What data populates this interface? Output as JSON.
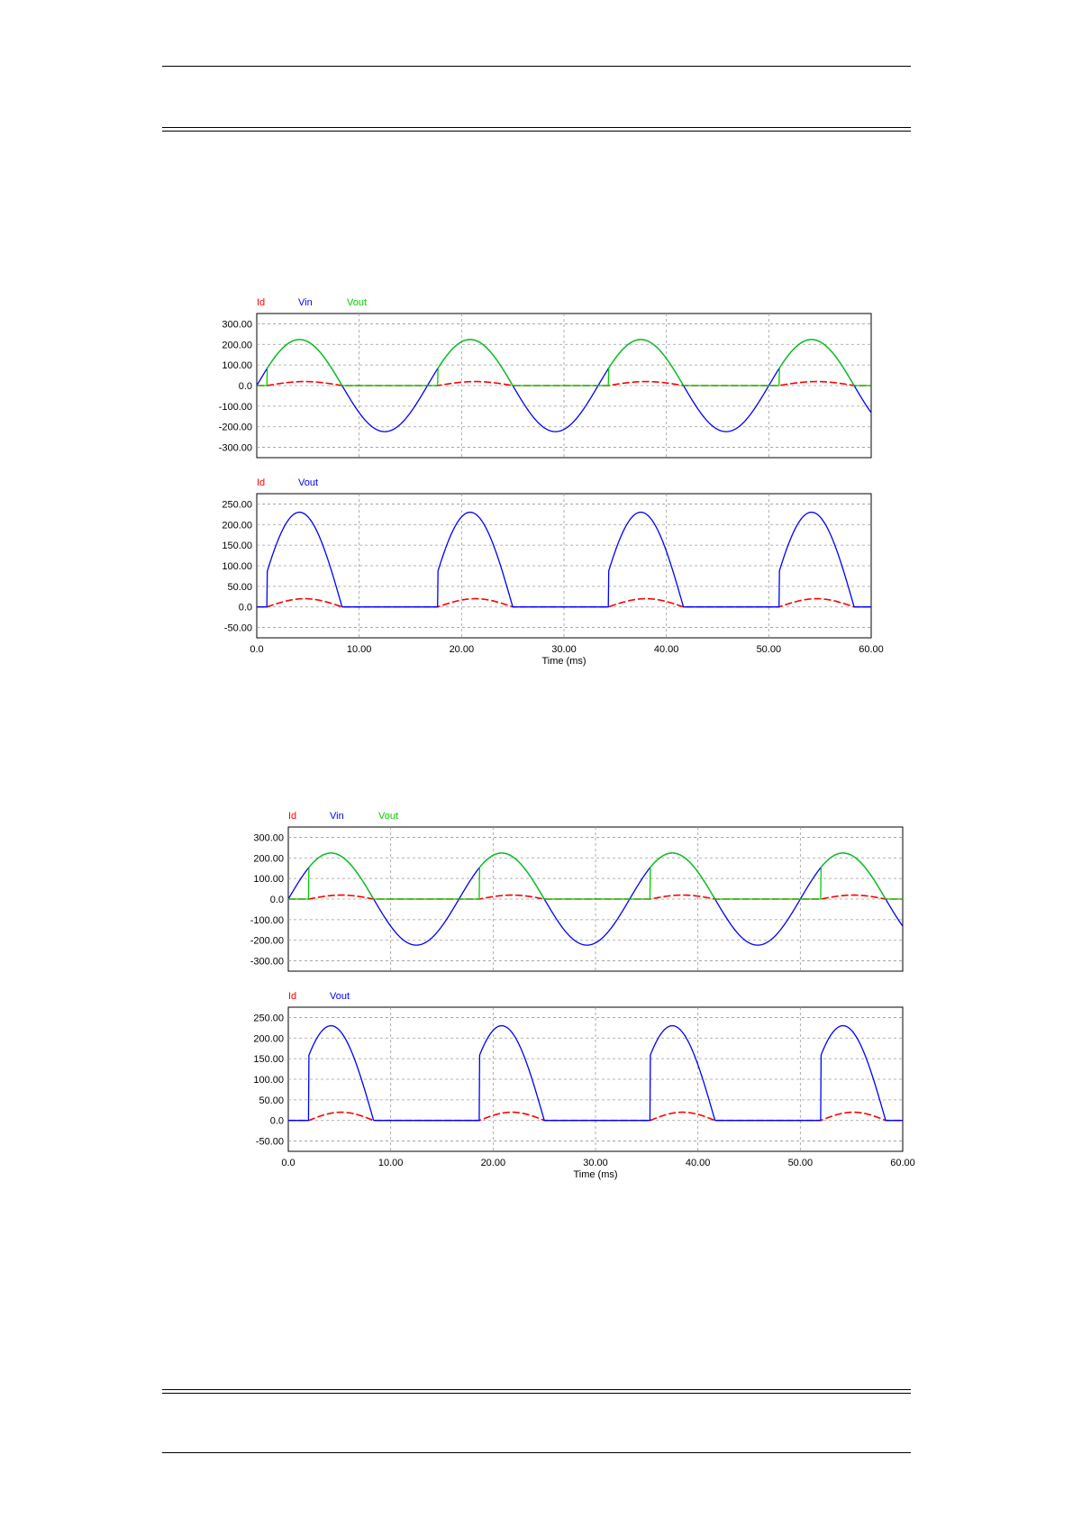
{
  "colors": {
    "id": "#ff0000",
    "vin": "#0000ff",
    "vout_green": "#00d000",
    "vout_blue": "#0000ff",
    "grid": "#9a9a9a"
  },
  "chart_data": [
    {
      "type": "line",
      "figure": 1,
      "alpha_ms": 1.0,
      "panels": [
        {
          "legend": [
            "Id",
            "Vin",
            "Vout"
          ],
          "legend_colors": [
            "#ff0000",
            "#0000ff",
            "#00d000"
          ],
          "yticks": [
            "300.00",
            "200.00",
            "100.00",
            "0.0",
            "-100.00",
            "-200.00",
            "-300.00"
          ],
          "ylim": [
            -360,
            360
          ],
          "series": [
            {
              "name": "Id",
              "amplitude": 20,
              "kind": "id"
            },
            {
              "name": "Vin",
              "amplitude": 230,
              "kind": "sine"
            },
            {
              "name": "Vout",
              "amplitude": 230,
              "kind": "vout"
            }
          ]
        },
        {
          "legend": [
            "Id",
            "Vout"
          ],
          "legend_colors": [
            "#ff0000",
            "#0000ff"
          ],
          "yticks": [
            "250.00",
            "200.00",
            "150.00",
            "100.00",
            "50.00",
            "0.0",
            "-50.00"
          ],
          "ylim": [
            -75,
            275
          ],
          "series": [
            {
              "name": "Id",
              "amplitude": 20,
              "kind": "id"
            },
            {
              "name": "Vout",
              "amplitude": 230,
              "kind": "vout"
            }
          ]
        }
      ],
      "xticks": [
        "0.0",
        "10.00",
        "20.00",
        "30.00",
        "40.00",
        "50.00",
        "60.00"
      ],
      "xlim": [
        0,
        60
      ],
      "xlabel": "Time (ms)",
      "period_ms": 16.667
    },
    {
      "type": "line",
      "figure": 2,
      "alpha_ms": 2.0,
      "panels": [
        {
          "legend": [
            "Id",
            "Vin",
            "Vout"
          ],
          "legend_colors": [
            "#ff0000",
            "#0000ff",
            "#00d000"
          ],
          "yticks": [
            "300.00",
            "200.00",
            "100.00",
            "0.0",
            "-100.00",
            "-200.00",
            "-300.00"
          ],
          "ylim": [
            -360,
            360
          ],
          "series": [
            {
              "name": "Id",
              "amplitude": 20,
              "kind": "id"
            },
            {
              "name": "Vin",
              "amplitude": 230,
              "kind": "sine"
            },
            {
              "name": "Vout",
              "amplitude": 230,
              "kind": "vout"
            }
          ]
        },
        {
          "legend": [
            "Id",
            "Vout"
          ],
          "legend_colors": [
            "#ff0000",
            "#0000ff"
          ],
          "yticks": [
            "250.00",
            "200.00",
            "150.00",
            "100.00",
            "50.00",
            "0.0",
            "-50.00"
          ],
          "ylim": [
            -75,
            275
          ],
          "series": [
            {
              "name": "Id",
              "amplitude": 20,
              "kind": "id"
            },
            {
              "name": "Vout",
              "amplitude": 230,
              "kind": "vout"
            }
          ]
        }
      ],
      "xticks": [
        "0.0",
        "10.00",
        "20.00",
        "30.00",
        "40.00",
        "50.00",
        "60.00"
      ],
      "xlim": [
        0,
        60
      ],
      "xlabel": "Time (ms)",
      "period_ms": 16.667
    }
  ]
}
